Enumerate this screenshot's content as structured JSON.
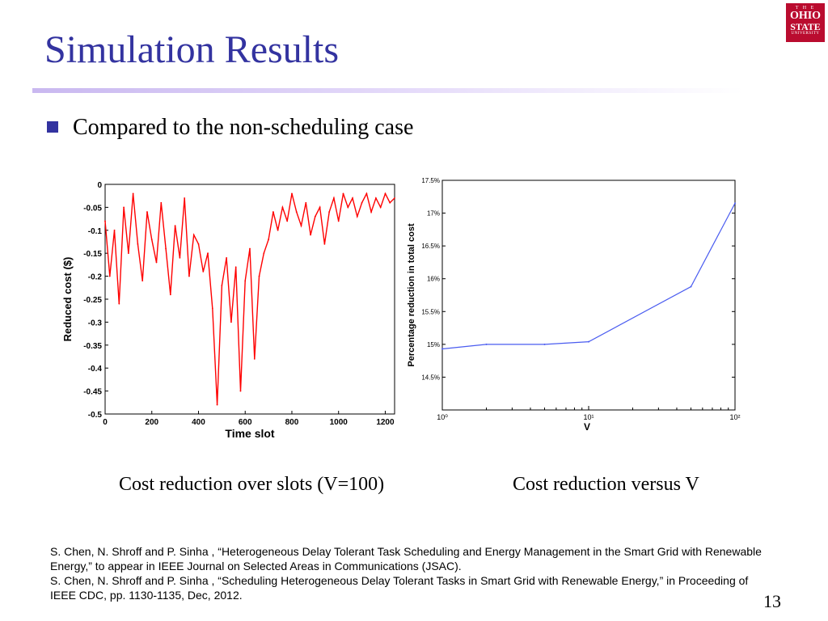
{
  "slide": {
    "title": "Simulation Results",
    "bullet": "Compared to the non-scheduling case",
    "logo": {
      "line1": "T H E",
      "line2": "OHIO",
      "line3": "STATE",
      "line4": "UNIVERSITY"
    },
    "captions": {
      "left": "Cost reduction over slots (V=100)",
      "right": "Cost reduction versus V"
    },
    "references": [
      "S. Chen, N. Shroff and P. Sinha , “Heterogeneous Delay Tolerant Task Scheduling and Energy Management in the Smart Grid with Renewable Energy,” to appear in IEEE Journal on Selected Areas in Communications (JSAC).",
      "S. Chen, N. Shroff and P. Sinha , “Scheduling Heterogeneous Delay Tolerant Tasks in Smart Grid with Renewable Energy,” in Proceeding of IEEE CDC, pp. 1130-1135, Dec, 2012."
    ],
    "page_number": "13",
    "colors": {
      "title": "#3333a0",
      "line1": "#ff0000",
      "line2": "#4a5cf0"
    }
  },
  "chart_data": [
    {
      "type": "line",
      "xlabel": "Time slot",
      "ylabel": "Reduced cost ($)",
      "xlim": [
        0,
        1240
      ],
      "ylim": [
        -0.5,
        0
      ],
      "xticks": [
        0,
        200,
        400,
        600,
        800,
        1000,
        1200
      ],
      "yticks": [
        0,
        -0.05,
        -0.1,
        -0.15,
        -0.2,
        -0.25,
        -0.3,
        -0.35,
        -0.4,
        -0.45,
        -0.5
      ],
      "series": [
        {
          "x": [
            0,
            20,
            40,
            60,
            80,
            100,
            120,
            140,
            160,
            180,
            200,
            220,
            240,
            260,
            280,
            300,
            320,
            340,
            360,
            380,
            400,
            420,
            440,
            460,
            480,
            500,
            520,
            540,
            560,
            580,
            600,
            620,
            640,
            660,
            680,
            700,
            720,
            740,
            760,
            780,
            800,
            820,
            840,
            860,
            880,
            900,
            920,
            940,
            960,
            980,
            1000,
            1020,
            1040,
            1060,
            1080,
            1100,
            1120,
            1140,
            1160,
            1180,
            1200,
            1220,
            1240
          ],
          "y": [
            -0.08,
            -0.2,
            -0.1,
            -0.26,
            -0.05,
            -0.15,
            -0.02,
            -0.13,
            -0.21,
            -0.06,
            -0.12,
            -0.17,
            -0.04,
            -0.14,
            -0.24,
            -0.09,
            -0.16,
            -0.03,
            -0.2,
            -0.11,
            -0.13,
            -0.19,
            -0.15,
            -0.27,
            -0.48,
            -0.22,
            -0.16,
            -0.3,
            -0.18,
            -0.45,
            -0.21,
            -0.14,
            -0.38,
            -0.2,
            -0.15,
            -0.12,
            -0.06,
            -0.1,
            -0.05,
            -0.08,
            -0.02,
            -0.06,
            -0.09,
            -0.04,
            -0.11,
            -0.07,
            -0.05,
            -0.13,
            -0.06,
            -0.03,
            -0.08,
            -0.02,
            -0.05,
            -0.03,
            -0.07,
            -0.04,
            -0.02,
            -0.06,
            -0.03,
            -0.05,
            -0.02,
            -0.04,
            -0.03
          ]
        }
      ]
    },
    {
      "type": "line",
      "xlabel": "V",
      "ylabel": "Percentage reduction in total cost",
      "xscale": "log",
      "xlim": [
        1,
        100
      ],
      "ylim": [
        14,
        17.5
      ],
      "xticks": [
        "10⁰",
        "10¹",
        "10²"
      ],
      "yticks": [
        "17.5%",
        "17%",
        "16.5%",
        "16%",
        "15.5%",
        "15%",
        "14.5%"
      ],
      "series": [
        {
          "x": [
            1,
            2,
            5,
            10,
            50,
            100
          ],
          "y": [
            14.93,
            15.0,
            15.0,
            15.04,
            15.88,
            17.15
          ]
        }
      ]
    }
  ]
}
